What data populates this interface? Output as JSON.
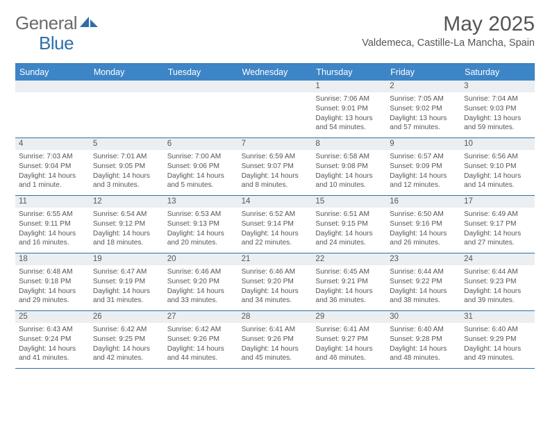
{
  "brand": {
    "part1": "General",
    "part2": "Blue"
  },
  "title": "May 2025",
  "location": "Valdemeca, Castille-La Mancha, Spain",
  "colors": {
    "header_bg": "#3d85c6",
    "border": "#2f6fa8",
    "stripe": "#eceff1",
    "text": "#555555"
  },
  "day_headers": [
    "Sunday",
    "Monday",
    "Tuesday",
    "Wednesday",
    "Thursday",
    "Friday",
    "Saturday"
  ],
  "weeks": [
    [
      {
        "n": "",
        "lines": []
      },
      {
        "n": "",
        "lines": []
      },
      {
        "n": "",
        "lines": []
      },
      {
        "n": "",
        "lines": []
      },
      {
        "n": "1",
        "lines": [
          "Sunrise: 7:06 AM",
          "Sunset: 9:01 PM",
          "Daylight: 13 hours",
          "and 54 minutes."
        ]
      },
      {
        "n": "2",
        "lines": [
          "Sunrise: 7:05 AM",
          "Sunset: 9:02 PM",
          "Daylight: 13 hours",
          "and 57 minutes."
        ]
      },
      {
        "n": "3",
        "lines": [
          "Sunrise: 7:04 AM",
          "Sunset: 9:03 PM",
          "Daylight: 13 hours",
          "and 59 minutes."
        ]
      }
    ],
    [
      {
        "n": "4",
        "lines": [
          "Sunrise: 7:03 AM",
          "Sunset: 9:04 PM",
          "Daylight: 14 hours",
          "and 1 minute."
        ]
      },
      {
        "n": "5",
        "lines": [
          "Sunrise: 7:01 AM",
          "Sunset: 9:05 PM",
          "Daylight: 14 hours",
          "and 3 minutes."
        ]
      },
      {
        "n": "6",
        "lines": [
          "Sunrise: 7:00 AM",
          "Sunset: 9:06 PM",
          "Daylight: 14 hours",
          "and 5 minutes."
        ]
      },
      {
        "n": "7",
        "lines": [
          "Sunrise: 6:59 AM",
          "Sunset: 9:07 PM",
          "Daylight: 14 hours",
          "and 8 minutes."
        ]
      },
      {
        "n": "8",
        "lines": [
          "Sunrise: 6:58 AM",
          "Sunset: 9:08 PM",
          "Daylight: 14 hours",
          "and 10 minutes."
        ]
      },
      {
        "n": "9",
        "lines": [
          "Sunrise: 6:57 AM",
          "Sunset: 9:09 PM",
          "Daylight: 14 hours",
          "and 12 minutes."
        ]
      },
      {
        "n": "10",
        "lines": [
          "Sunrise: 6:56 AM",
          "Sunset: 9:10 PM",
          "Daylight: 14 hours",
          "and 14 minutes."
        ]
      }
    ],
    [
      {
        "n": "11",
        "lines": [
          "Sunrise: 6:55 AM",
          "Sunset: 9:11 PM",
          "Daylight: 14 hours",
          "and 16 minutes."
        ]
      },
      {
        "n": "12",
        "lines": [
          "Sunrise: 6:54 AM",
          "Sunset: 9:12 PM",
          "Daylight: 14 hours",
          "and 18 minutes."
        ]
      },
      {
        "n": "13",
        "lines": [
          "Sunrise: 6:53 AM",
          "Sunset: 9:13 PM",
          "Daylight: 14 hours",
          "and 20 minutes."
        ]
      },
      {
        "n": "14",
        "lines": [
          "Sunrise: 6:52 AM",
          "Sunset: 9:14 PM",
          "Daylight: 14 hours",
          "and 22 minutes."
        ]
      },
      {
        "n": "15",
        "lines": [
          "Sunrise: 6:51 AM",
          "Sunset: 9:15 PM",
          "Daylight: 14 hours",
          "and 24 minutes."
        ]
      },
      {
        "n": "16",
        "lines": [
          "Sunrise: 6:50 AM",
          "Sunset: 9:16 PM",
          "Daylight: 14 hours",
          "and 26 minutes."
        ]
      },
      {
        "n": "17",
        "lines": [
          "Sunrise: 6:49 AM",
          "Sunset: 9:17 PM",
          "Daylight: 14 hours",
          "and 27 minutes."
        ]
      }
    ],
    [
      {
        "n": "18",
        "lines": [
          "Sunrise: 6:48 AM",
          "Sunset: 9:18 PM",
          "Daylight: 14 hours",
          "and 29 minutes."
        ]
      },
      {
        "n": "19",
        "lines": [
          "Sunrise: 6:47 AM",
          "Sunset: 9:19 PM",
          "Daylight: 14 hours",
          "and 31 minutes."
        ]
      },
      {
        "n": "20",
        "lines": [
          "Sunrise: 6:46 AM",
          "Sunset: 9:20 PM",
          "Daylight: 14 hours",
          "and 33 minutes."
        ]
      },
      {
        "n": "21",
        "lines": [
          "Sunrise: 6:46 AM",
          "Sunset: 9:20 PM",
          "Daylight: 14 hours",
          "and 34 minutes."
        ]
      },
      {
        "n": "22",
        "lines": [
          "Sunrise: 6:45 AM",
          "Sunset: 9:21 PM",
          "Daylight: 14 hours",
          "and 36 minutes."
        ]
      },
      {
        "n": "23",
        "lines": [
          "Sunrise: 6:44 AM",
          "Sunset: 9:22 PM",
          "Daylight: 14 hours",
          "and 38 minutes."
        ]
      },
      {
        "n": "24",
        "lines": [
          "Sunrise: 6:44 AM",
          "Sunset: 9:23 PM",
          "Daylight: 14 hours",
          "and 39 minutes."
        ]
      }
    ],
    [
      {
        "n": "25",
        "lines": [
          "Sunrise: 6:43 AM",
          "Sunset: 9:24 PM",
          "Daylight: 14 hours",
          "and 41 minutes."
        ]
      },
      {
        "n": "26",
        "lines": [
          "Sunrise: 6:42 AM",
          "Sunset: 9:25 PM",
          "Daylight: 14 hours",
          "and 42 minutes."
        ]
      },
      {
        "n": "27",
        "lines": [
          "Sunrise: 6:42 AM",
          "Sunset: 9:26 PM",
          "Daylight: 14 hours",
          "and 44 minutes."
        ]
      },
      {
        "n": "28",
        "lines": [
          "Sunrise: 6:41 AM",
          "Sunset: 9:26 PM",
          "Daylight: 14 hours",
          "and 45 minutes."
        ]
      },
      {
        "n": "29",
        "lines": [
          "Sunrise: 6:41 AM",
          "Sunset: 9:27 PM",
          "Daylight: 14 hours",
          "and 46 minutes."
        ]
      },
      {
        "n": "30",
        "lines": [
          "Sunrise: 6:40 AM",
          "Sunset: 9:28 PM",
          "Daylight: 14 hours",
          "and 48 minutes."
        ]
      },
      {
        "n": "31",
        "lines": [
          "Sunrise: 6:40 AM",
          "Sunset: 9:29 PM",
          "Daylight: 14 hours",
          "and 49 minutes."
        ]
      }
    ]
  ]
}
